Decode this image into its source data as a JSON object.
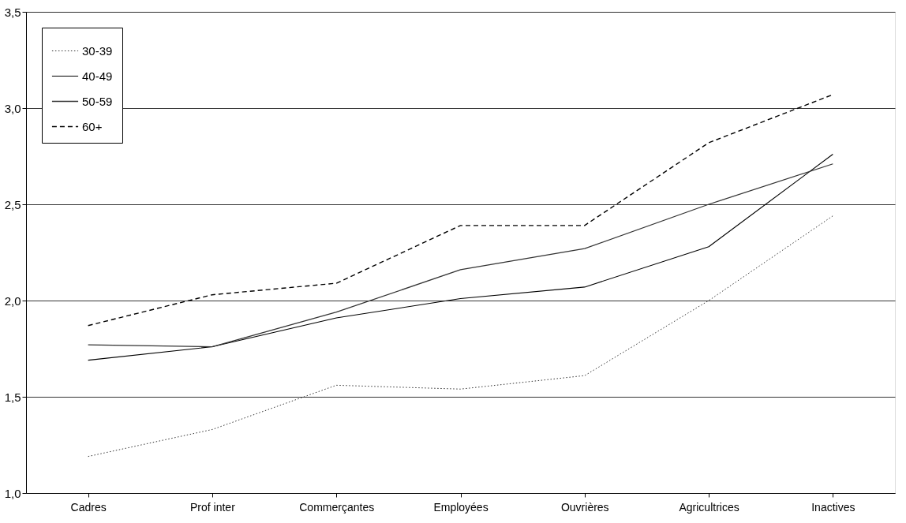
{
  "chart_data": {
    "type": "line",
    "categories": [
      "Cadres",
      "Prof inter",
      "Commerçantes",
      "Employées",
      "Ouvrières",
      "Agricultrices",
      "Inactives"
    ],
    "series": [
      {
        "name": "30-39",
        "color": "#333333",
        "line_style": "dotted",
        "values": [
          1.19,
          1.33,
          1.56,
          1.54,
          1.61,
          2.0,
          2.44
        ]
      },
      {
        "name": "40-49",
        "color": "#000000",
        "line_style": "solid",
        "values": [
          1.69,
          1.76,
          1.91,
          2.01,
          2.07,
          2.28,
          2.76
        ]
      },
      {
        "name": "50-59",
        "color": "#333333",
        "line_style": "solid",
        "values": [
          1.77,
          1.76,
          1.94,
          2.16,
          2.27,
          2.5,
          2.71
        ]
      },
      {
        "name": "60+",
        "color": "#000000",
        "line_style": "dashed",
        "values": [
          1.87,
          2.03,
          2.09,
          2.39,
          2.39,
          2.82,
          3.07
        ]
      }
    ],
    "ylim": [
      1.0,
      3.5
    ],
    "yticks": [
      {
        "value": 1.0,
        "label": "1,0"
      },
      {
        "value": 1.5,
        "label": "1,5"
      },
      {
        "value": 2.0,
        "label": "2,0"
      },
      {
        "value": 2.5,
        "label": "2,5"
      },
      {
        "value": 3.0,
        "label": "3,0"
      },
      {
        "value": 3.5,
        "label": "3,5"
      }
    ],
    "grid": "y",
    "legend": "top left",
    "marker": "none"
  }
}
